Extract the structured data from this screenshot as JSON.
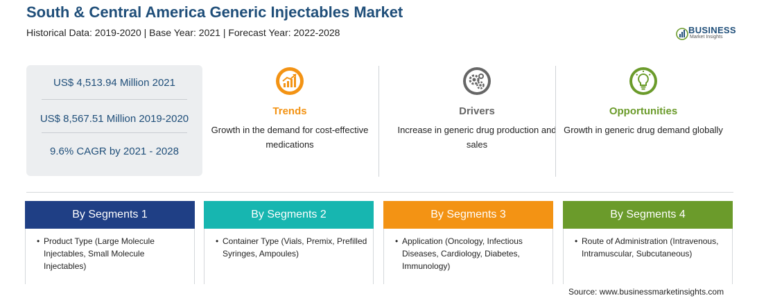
{
  "header": {
    "title": "South & Central America Generic Injectables Market",
    "subtitle": "Historical Data: 2019-2020 | Base Year: 2021 | Forecast Year: 2022-2028"
  },
  "logo": {
    "word1": "BUSINESS",
    "word2": "Market Insights"
  },
  "stats": [
    "US$ 4,513.94 Million 2021",
    "US$ 8,567.51 Million 2019-2020",
    "9.6% CAGR by 2021 - 2028"
  ],
  "features": [
    {
      "title": "Trends",
      "desc": "Growth in the demand for cost-effective medications",
      "color": "#f39314",
      "icon": "trend-chart-icon"
    },
    {
      "title": "Drivers",
      "desc": "Increase in generic drug production and sales",
      "color": "#666666",
      "icon": "gears-icon"
    },
    {
      "title": "Opportunities",
      "desc": "Growth in generic drug demand globally",
      "color": "#6b9b2b",
      "icon": "lightbulb-icon"
    }
  ],
  "segments": [
    {
      "title": "By Segments 1",
      "item": "Product Type (Large Molecule Injectables, Small Molecule Injectables)",
      "color": "#1f3f85"
    },
    {
      "title": "By Segments 2",
      "item": "Container Type (Vials, Premix, Prefilled Syringes, Ampoules)",
      "color": "#17b6b0"
    },
    {
      "title": "By Segments 3",
      "item": "Application (Oncology, Infectious Diseases, Cardiology, Diabetes, Immunology)",
      "color": "#f39314"
    },
    {
      "title": "By Segments 4",
      "item": "Route of Administration (Intravenous, Intramuscular, Subcutaneous)",
      "color": "#6b9b2b"
    }
  ],
  "bullet": "•",
  "source": "Source: www.businessmarketinsights.com"
}
